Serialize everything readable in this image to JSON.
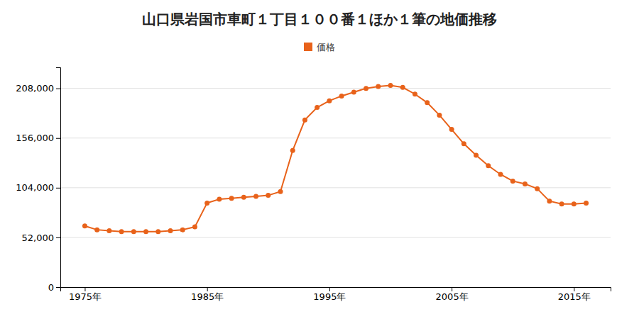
{
  "chart_data": {
    "type": "line",
    "title": "山口県岩国市車町１丁目１００番１ほか１筆の地価推移",
    "x": [
      1975,
      1976,
      1977,
      1978,
      1979,
      1980,
      1981,
      1982,
      1983,
      1984,
      1985,
      1986,
      1987,
      1988,
      1989,
      1990,
      1991,
      1992,
      1993,
      1994,
      1995,
      1996,
      1997,
      1998,
      1999,
      2000,
      2001,
      2002,
      2003,
      2004,
      2005,
      2006,
      2007,
      2008,
      2009,
      2010,
      2011,
      2012,
      2013,
      2014,
      2015,
      2016
    ],
    "series": [
      {
        "name": "価格",
        "color": "#E8621A",
        "marker": "circle",
        "values": [
          64000,
          60000,
          59000,
          58000,
          58000,
          58000,
          58000,
          59000,
          60000,
          63000,
          88000,
          92000,
          93000,
          94000,
          95000,
          96000,
          100000,
          143000,
          175000,
          188000,
          195000,
          200000,
          204000,
          208000,
          210000,
          211000,
          209000,
          202000,
          193000,
          180000,
          165000,
          150000,
          138000,
          127000,
          118000,
          111000,
          108000,
          103000,
          90000,
          87000,
          87000,
          88000
        ]
      }
    ],
    "xlim": [
      1973,
      2018
    ],
    "xticks": [
      {
        "value": 1975,
        "label": "1975年"
      },
      {
        "value": 1985,
        "label": "1985年"
      },
      {
        "value": 1995,
        "label": "1995年"
      },
      {
        "value": 2005,
        "label": "2005年"
      },
      {
        "value": 2015,
        "label": "2015年"
      }
    ],
    "ylim": [
      0,
      230000
    ],
    "yticks": [
      0,
      {
        "value": 52000,
        "label": "52,000"
      },
      {
        "value": 104000,
        "label": "104,000"
      },
      {
        "value": 156000,
        "label": "156,000"
      },
      {
        "value": 208000,
        "label": "208,000"
      }
    ],
    "grid": "y",
    "legend": "top"
  }
}
